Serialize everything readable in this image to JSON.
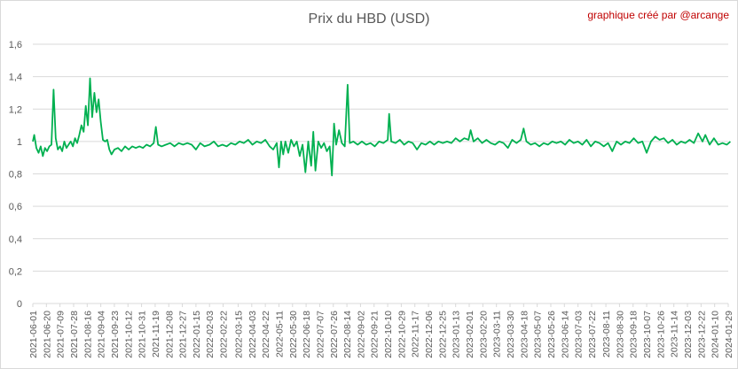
{
  "chart_data": {
    "type": "line",
    "title": "Prix du HBD (USD)",
    "annotation": "graphique créé par @arcange",
    "xlabel": "",
    "ylabel": "",
    "ylim": [
      0,
      1.6
    ],
    "yticks": [
      "0",
      "0,2",
      "0,4",
      "0,6",
      "0,8",
      "1",
      "1,2",
      "1,4",
      "1,6"
    ],
    "grid": "horizontal",
    "line_color": "#00b050",
    "x_tick_labels": [
      "2021-06-01",
      "2021-06-20",
      "2021-07-09",
      "2021-07-28",
      "2021-08-16",
      "2021-09-04",
      "2021-09-23",
      "2021-10-12",
      "2021-10-31",
      "2021-11-19",
      "2021-12-08",
      "2021-12-27",
      "2022-01-15",
      "2022-02-03",
      "2022-02-22",
      "2022-03-15",
      "2022-04-03",
      "2022-04-22",
      "2022-05-11",
      "2022-05-30",
      "2022-06-18",
      "2022-07-07",
      "2022-07-26",
      "2022-08-14",
      "2022-09-02",
      "2022-09-21",
      "2022-10-10",
      "2022-10-29",
      "2022-11-17",
      "2022-12-06",
      "2022-12-25",
      "2023-01-13",
      "2023-02-01",
      "2023-02-20",
      "2023-03-11",
      "2023-03-30",
      "2023-04-18",
      "2023-05-07",
      "2023-05-26",
      "2023-06-14",
      "2023-07-03",
      "2023-07-22",
      "2023-08-11",
      "2023-08-30",
      "2023-09-18",
      "2023-10-07",
      "2023-10-26",
      "2023-11-14",
      "2023-12-03",
      "2023-12-22",
      "2024-01-10",
      "2024-01-29"
    ],
    "series": [
      {
        "values": [
          [
            "2021-06-01",
            1.0
          ],
          [
            "2021-06-03",
            1.04
          ],
          [
            "2021-06-06",
            0.96
          ],
          [
            "2021-06-09",
            0.93
          ],
          [
            "2021-06-12",
            0.97
          ],
          [
            "2021-06-15",
            0.91
          ],
          [
            "2021-06-18",
            0.96
          ],
          [
            "2021-06-21",
            0.94
          ],
          [
            "2021-06-24",
            0.97
          ],
          [
            "2021-06-27",
            0.98
          ],
          [
            "2021-06-30",
            1.32
          ],
          [
            "2021-07-03",
            1.02
          ],
          [
            "2021-07-06",
            0.95
          ],
          [
            "2021-07-09",
            0.97
          ],
          [
            "2021-07-12",
            0.94
          ],
          [
            "2021-07-15",
            1.0
          ],
          [
            "2021-07-18",
            0.96
          ],
          [
            "2021-07-21",
            0.98
          ],
          [
            "2021-07-24",
            1.0
          ],
          [
            "2021-07-27",
            0.97
          ],
          [
            "2021-07-30",
            1.02
          ],
          [
            "2021-08-02",
            0.99
          ],
          [
            "2021-08-05",
            1.04
          ],
          [
            "2021-08-08",
            1.1
          ],
          [
            "2021-08-11",
            1.06
          ],
          [
            "2021-08-14",
            1.22
          ],
          [
            "2021-08-17",
            1.1
          ],
          [
            "2021-08-20",
            1.39
          ],
          [
            "2021-08-23",
            1.15
          ],
          [
            "2021-08-26",
            1.3
          ],
          [
            "2021-08-29",
            1.18
          ],
          [
            "2021-09-01",
            1.26
          ],
          [
            "2021-09-04",
            1.12
          ],
          [
            "2021-09-07",
            1.01
          ],
          [
            "2021-09-10",
            1.0
          ],
          [
            "2021-09-13",
            1.01
          ],
          [
            "2021-09-16",
            0.95
          ],
          [
            "2021-09-19",
            0.92
          ],
          [
            "2021-09-23",
            0.95
          ],
          [
            "2021-09-28",
            0.96
          ],
          [
            "2021-10-03",
            0.94
          ],
          [
            "2021-10-08",
            0.97
          ],
          [
            "2021-10-13",
            0.95
          ],
          [
            "2021-10-18",
            0.97
          ],
          [
            "2021-10-23",
            0.96
          ],
          [
            "2021-10-28",
            0.97
          ],
          [
            "2021-11-02",
            0.96
          ],
          [
            "2021-11-07",
            0.98
          ],
          [
            "2021-11-12",
            0.97
          ],
          [
            "2021-11-17",
            0.99
          ],
          [
            "2021-11-20",
            1.09
          ],
          [
            "2021-11-23",
            0.98
          ],
          [
            "2021-11-28",
            0.97
          ],
          [
            "2021-12-04",
            0.98
          ],
          [
            "2021-12-10",
            0.99
          ],
          [
            "2021-12-16",
            0.97
          ],
          [
            "2021-12-22",
            0.99
          ],
          [
            "2021-12-28",
            0.98
          ],
          [
            "2022-01-03",
            0.99
          ],
          [
            "2022-01-09",
            0.98
          ],
          [
            "2022-01-15",
            0.95
          ],
          [
            "2022-01-21",
            0.99
          ],
          [
            "2022-01-27",
            0.97
          ],
          [
            "2022-02-03",
            0.98
          ],
          [
            "2022-02-09",
            1.0
          ],
          [
            "2022-02-15",
            0.97
          ],
          [
            "2022-02-21",
            0.98
          ],
          [
            "2022-02-27",
            0.97
          ],
          [
            "2022-03-05",
            0.99
          ],
          [
            "2022-03-11",
            0.98
          ],
          [
            "2022-03-17",
            1.0
          ],
          [
            "2022-03-23",
            0.99
          ],
          [
            "2022-03-29",
            1.01
          ],
          [
            "2022-04-04",
            0.98
          ],
          [
            "2022-04-10",
            1.0
          ],
          [
            "2022-04-16",
            0.99
          ],
          [
            "2022-04-22",
            1.01
          ],
          [
            "2022-04-28",
            0.97
          ],
          [
            "2022-05-03",
            0.95
          ],
          [
            "2022-05-08",
            0.99
          ],
          [
            "2022-05-11",
            0.84
          ],
          [
            "2022-05-14",
            1.0
          ],
          [
            "2022-05-17",
            0.92
          ],
          [
            "2022-05-20",
            1.0
          ],
          [
            "2022-05-24",
            0.93
          ],
          [
            "2022-05-28",
            1.01
          ],
          [
            "2022-06-01",
            0.97
          ],
          [
            "2022-06-05",
            1.0
          ],
          [
            "2022-06-09",
            0.91
          ],
          [
            "2022-06-13",
            0.98
          ],
          [
            "2022-06-17",
            0.81
          ],
          [
            "2022-06-21",
            1.0
          ],
          [
            "2022-06-25",
            0.85
          ],
          [
            "2022-06-28",
            1.06
          ],
          [
            "2022-07-01",
            0.82
          ],
          [
            "2022-07-05",
            1.0
          ],
          [
            "2022-07-09",
            0.96
          ],
          [
            "2022-07-13",
            0.99
          ],
          [
            "2022-07-17",
            0.94
          ],
          [
            "2022-07-21",
            0.97
          ],
          [
            "2022-07-24",
            0.79
          ],
          [
            "2022-07-27",
            1.11
          ],
          [
            "2022-07-30",
            0.98
          ],
          [
            "2022-08-03",
            1.07
          ],
          [
            "2022-08-07",
            0.99
          ],
          [
            "2022-08-11",
            0.97
          ],
          [
            "2022-08-15",
            1.35
          ],
          [
            "2022-08-18",
            0.99
          ],
          [
            "2022-08-23",
            1.0
          ],
          [
            "2022-08-29",
            0.98
          ],
          [
            "2022-09-04",
            1.0
          ],
          [
            "2022-09-10",
            0.98
          ],
          [
            "2022-09-16",
            0.99
          ],
          [
            "2022-09-22",
            0.97
          ],
          [
            "2022-09-28",
            1.0
          ],
          [
            "2022-10-04",
            0.99
          ],
          [
            "2022-10-10",
            1.01
          ],
          [
            "2022-10-12",
            1.17
          ],
          [
            "2022-10-15",
            1.0
          ],
          [
            "2022-10-21",
            0.99
          ],
          [
            "2022-10-27",
            1.01
          ],
          [
            "2022-11-02",
            0.98
          ],
          [
            "2022-11-08",
            1.0
          ],
          [
            "2022-11-14",
            0.99
          ],
          [
            "2022-11-20",
            0.95
          ],
          [
            "2022-11-26",
            0.99
          ],
          [
            "2022-12-02",
            0.98
          ],
          [
            "2022-12-08",
            1.0
          ],
          [
            "2022-12-14",
            0.98
          ],
          [
            "2022-12-20",
            1.0
          ],
          [
            "2022-12-26",
            0.99
          ],
          [
            "2023-01-01",
            1.0
          ],
          [
            "2023-01-07",
            0.99
          ],
          [
            "2023-01-13",
            1.02
          ],
          [
            "2023-01-19",
            1.0
          ],
          [
            "2023-01-25",
            1.02
          ],
          [
            "2023-01-31",
            1.01
          ],
          [
            "2023-02-03",
            1.07
          ],
          [
            "2023-02-07",
            1.0
          ],
          [
            "2023-02-13",
            1.02
          ],
          [
            "2023-02-19",
            0.99
          ],
          [
            "2023-02-25",
            1.01
          ],
          [
            "2023-03-03",
            0.99
          ],
          [
            "2023-03-09",
            0.98
          ],
          [
            "2023-03-15",
            1.0
          ],
          [
            "2023-03-21",
            0.99
          ],
          [
            "2023-03-27",
            0.96
          ],
          [
            "2023-04-02",
            1.01
          ],
          [
            "2023-04-08",
            0.99
          ],
          [
            "2023-04-14",
            1.01
          ],
          [
            "2023-04-18",
            1.08
          ],
          [
            "2023-04-22",
            1.0
          ],
          [
            "2023-04-28",
            0.98
          ],
          [
            "2023-05-04",
            0.99
          ],
          [
            "2023-05-10",
            0.97
          ],
          [
            "2023-05-16",
            0.99
          ],
          [
            "2023-05-22",
            0.98
          ],
          [
            "2023-05-28",
            1.0
          ],
          [
            "2023-06-03",
            0.99
          ],
          [
            "2023-06-09",
            1.0
          ],
          [
            "2023-06-15",
            0.98
          ],
          [
            "2023-06-21",
            1.01
          ],
          [
            "2023-06-27",
            0.99
          ],
          [
            "2023-07-03",
            1.0
          ],
          [
            "2023-07-09",
            0.98
          ],
          [
            "2023-07-15",
            1.01
          ],
          [
            "2023-07-21",
            0.97
          ],
          [
            "2023-07-27",
            1.0
          ],
          [
            "2023-08-02",
            0.99
          ],
          [
            "2023-08-08",
            0.97
          ],
          [
            "2023-08-14",
            0.99
          ],
          [
            "2023-08-20",
            0.94
          ],
          [
            "2023-08-26",
            1.0
          ],
          [
            "2023-09-01",
            0.98
          ],
          [
            "2023-09-07",
            1.0
          ],
          [
            "2023-09-13",
            0.99
          ],
          [
            "2023-09-19",
            1.02
          ],
          [
            "2023-09-25",
            0.99
          ],
          [
            "2023-10-01",
            1.0
          ],
          [
            "2023-10-07",
            0.93
          ],
          [
            "2023-10-13",
            1.0
          ],
          [
            "2023-10-19",
            1.03
          ],
          [
            "2023-10-25",
            1.01
          ],
          [
            "2023-10-31",
            1.02
          ],
          [
            "2023-11-06",
            0.99
          ],
          [
            "2023-11-12",
            1.01
          ],
          [
            "2023-11-18",
            0.98
          ],
          [
            "2023-11-24",
            1.0
          ],
          [
            "2023-11-30",
            0.99
          ],
          [
            "2023-12-06",
            1.01
          ],
          [
            "2023-12-12",
            0.99
          ],
          [
            "2023-12-18",
            1.05
          ],
          [
            "2023-12-24",
            1.0
          ],
          [
            "2023-12-28",
            1.04
          ],
          [
            "2024-01-03",
            0.98
          ],
          [
            "2024-01-09",
            1.02
          ],
          [
            "2024-01-15",
            0.98
          ],
          [
            "2024-01-21",
            0.99
          ],
          [
            "2024-01-27",
            0.98
          ],
          [
            "2024-02-01",
            1.0
          ]
        ]
      }
    ]
  }
}
